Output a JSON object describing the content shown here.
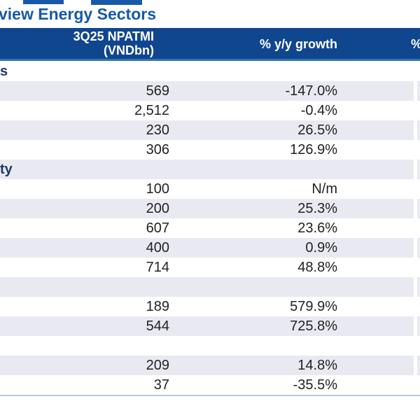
{
  "page": {
    "title_fragment": "view Energy Sectors"
  },
  "table": {
    "header": {
      "npatmi_line1": "3Q25 NPATMI",
      "npatmi_line2": "(VNDbn)",
      "yoy": "% y/y growth",
      "next_col_fragment": "%"
    },
    "rows": [
      {
        "type": "section",
        "label_fragment": "s",
        "npatmi": "",
        "yoy": ""
      },
      {
        "type": "data",
        "label_fragment": "",
        "npatmi": "569",
        "yoy": "-147.0%"
      },
      {
        "type": "data",
        "label_fragment": "",
        "npatmi": "2,512",
        "yoy": "-0.4%"
      },
      {
        "type": "data",
        "label_fragment": "",
        "npatmi": "230",
        "yoy": "26.5%"
      },
      {
        "type": "data",
        "label_fragment": "",
        "npatmi": "306",
        "yoy": "126.9%"
      },
      {
        "type": "section",
        "label_fragment": "ty",
        "npatmi": "",
        "yoy": ""
      },
      {
        "type": "data",
        "label_fragment": "",
        "npatmi": "100",
        "yoy": "N/m"
      },
      {
        "type": "data",
        "label_fragment": "",
        "npatmi": "200",
        "yoy": "25.3%"
      },
      {
        "type": "data",
        "label_fragment": "",
        "npatmi": "607",
        "yoy": "23.6%"
      },
      {
        "type": "data",
        "label_fragment": "",
        "npatmi": "400",
        "yoy": "0.9%"
      },
      {
        "type": "data",
        "label_fragment": "",
        "npatmi": "714",
        "yoy": "48.8%"
      },
      {
        "type": "section",
        "label_fragment": "",
        "npatmi": "",
        "yoy": ""
      },
      {
        "type": "data",
        "label_fragment": "",
        "npatmi": "189",
        "yoy": "579.9%"
      },
      {
        "type": "data",
        "label_fragment": "",
        "npatmi": "544",
        "yoy": "725.8%"
      },
      {
        "type": "section",
        "label_fragment": "",
        "npatmi": "",
        "yoy": ""
      },
      {
        "type": "data",
        "label_fragment": "",
        "npatmi": "209",
        "yoy": "14.8%"
      },
      {
        "type": "data",
        "label_fragment": "",
        "npatmi": "37",
        "yoy": "-35.5%"
      }
    ],
    "colors": {
      "header_bg": "#10468E",
      "header_text": "#FFFFFF",
      "title_blue": "#1759A8",
      "underline_blue": "#2E74B5",
      "row_stripe": "#E9EAF1",
      "row_white": "#FFFFFF",
      "bottom_border": "#B7C9DF",
      "body_text": "#222222",
      "section_text": "#1F3864"
    }
  }
}
